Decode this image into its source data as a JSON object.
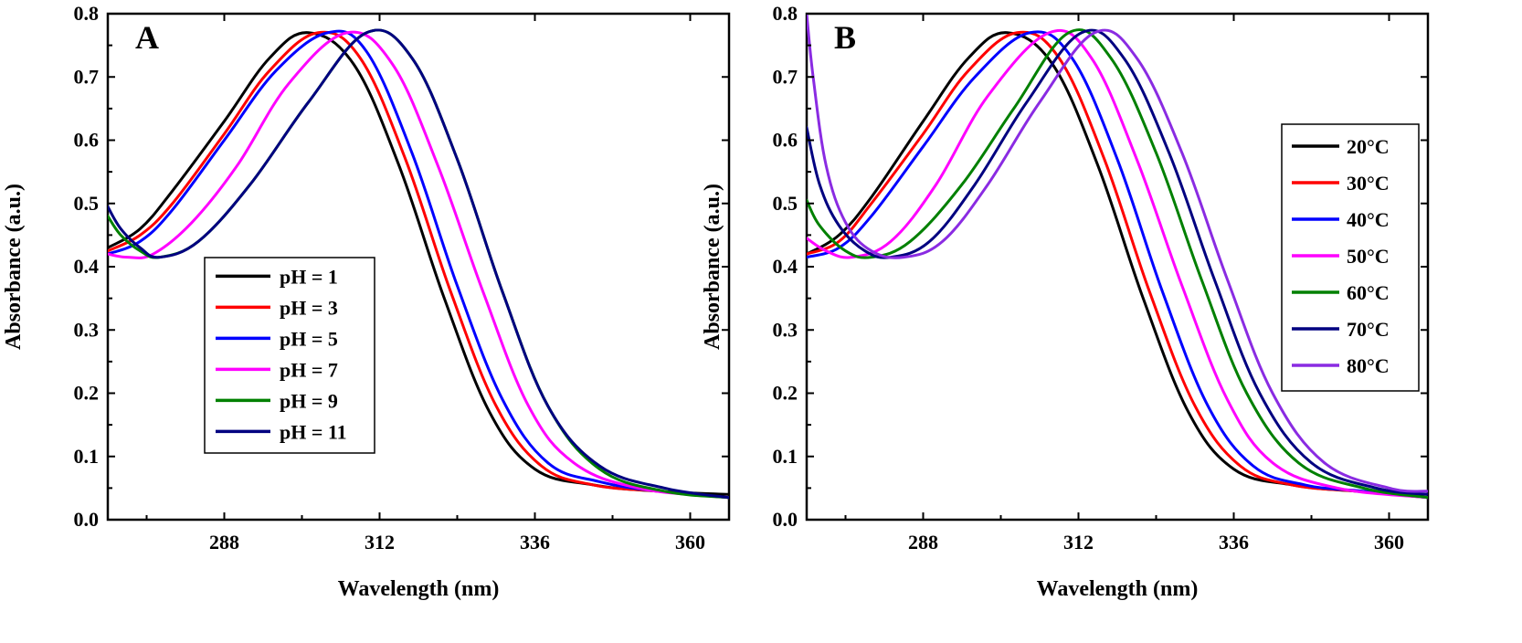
{
  "chart_data": [
    {
      "type": "line",
      "panel_label": "A",
      "xlabel": "Wavelength (nm)",
      "ylabel": "Absorbance (a.u.)",
      "xlim": [
        270,
        366
      ],
      "ylim": [
        0.0,
        0.8
      ],
      "xticks": [
        288,
        312,
        336,
        360
      ],
      "yticks": [
        0.0,
        0.1,
        0.2,
        0.3,
        0.4,
        0.5,
        0.6,
        0.7,
        0.8
      ],
      "xtick_labels": [
        "288",
        "312",
        "336",
        "360"
      ],
      "ytick_labels": [
        "0.0",
        "0.1",
        "0.2",
        "0.3",
        "0.4",
        "0.5",
        "0.6",
        "0.7",
        "0.8"
      ],
      "legend_position": "lower-center",
      "series": [
        {
          "name": "pH = 1",
          "color": "#000000",
          "peak_x": 301.0,
          "values_at": {
            "x": [
              270,
              275,
              280,
              288,
              295,
              301,
              308,
              315,
              322,
              329,
              336,
              345,
              355,
              366
            ],
            "y": [
              0.43,
              0.46,
              0.52,
              0.63,
              0.73,
              0.77,
              0.72,
              0.56,
              0.35,
              0.17,
              0.08,
              0.055,
              0.045,
              0.04
            ]
          }
        },
        {
          "name": "pH = 3",
          "color": "#ff0000",
          "peak_x": 302.5,
          "values_at": {
            "x": [
              270,
              275,
              280,
              288,
              295,
              302.5,
              309,
              316,
              323,
              330,
              337,
              345,
              355,
              366
            ],
            "y": [
              0.425,
              0.45,
              0.5,
              0.61,
              0.71,
              0.77,
              0.73,
              0.57,
              0.36,
              0.18,
              0.085,
              0.055,
              0.045,
              0.035
            ]
          }
        },
        {
          "name": "pH = 5",
          "color": "#0000ff",
          "peak_x": 304.0,
          "values_at": {
            "x": [
              270,
              275,
              280,
              288,
              296,
              304,
              310,
              317,
              324,
              331,
              338,
              346,
              355,
              366
            ],
            "y": [
              0.42,
              0.44,
              0.49,
              0.6,
              0.71,
              0.77,
              0.74,
              0.58,
              0.37,
              0.19,
              0.09,
              0.06,
              0.045,
              0.035
            ]
          }
        },
        {
          "name": "pH = 7",
          "color": "#ff00ff",
          "peak_x": 307.0,
          "values_at": {
            "x": [
              270,
              273,
              277,
              283,
              290,
              298,
              307,
              314,
              321,
              328,
              335,
              342,
              352,
              366
            ],
            "y": [
              0.42,
              0.415,
              0.42,
              0.47,
              0.56,
              0.69,
              0.77,
              0.72,
              0.56,
              0.36,
              0.18,
              0.09,
              0.05,
              0.035
            ]
          }
        },
        {
          "name": "pH = 9",
          "color": "#008000",
          "peak_x": 310.0,
          "values_at": {
            "x": [
              270,
              272,
              275,
              278,
              284,
              292,
              301,
              310,
              317,
              324,
              331,
              338,
              346,
              356,
              366
            ],
            "y": [
              0.48,
              0.45,
              0.425,
              0.415,
              0.44,
              0.53,
              0.66,
              0.77,
              0.73,
              0.57,
              0.36,
              0.18,
              0.08,
              0.045,
              0.035
            ]
          }
        },
        {
          "name": "pH = 11",
          "color": "#000080",
          "peak_x": 310.0,
          "values_at": {
            "x": [
              270,
              272,
              275,
              278,
              284,
              292,
              301,
              310,
              317,
              324,
              331,
              338,
              346,
              356,
              366
            ],
            "y": [
              0.495,
              0.46,
              0.43,
              0.415,
              0.44,
              0.53,
              0.66,
              0.77,
              0.73,
              0.57,
              0.36,
              0.18,
              0.085,
              0.05,
              0.035
            ]
          }
        }
      ]
    },
    {
      "type": "line",
      "panel_label": "B",
      "xlabel": "Wavelength (nm)",
      "ylabel": "Absorbance (a.u.)",
      "xlim": [
        270,
        366
      ],
      "ylim": [
        0.0,
        0.8
      ],
      "xticks": [
        288,
        312,
        336,
        360
      ],
      "yticks": [
        0.0,
        0.1,
        0.2,
        0.3,
        0.4,
        0.5,
        0.6,
        0.7,
        0.8
      ],
      "xtick_labels": [
        "288",
        "312",
        "336",
        "360"
      ],
      "ytick_labels": [
        "0.0",
        "0.1",
        "0.2",
        "0.3",
        "0.4",
        "0.5",
        "0.6",
        "0.7",
        "0.8"
      ],
      "legend_position": "right",
      "series": [
        {
          "name": "20°C",
          "color": "#000000",
          "peak_x": 301.0,
          "values_at": {
            "x": [
              270,
              275,
              280,
              288,
              295,
              301,
              308,
              315,
              322,
              329,
              336,
              345,
              355,
              366
            ],
            "y": [
              0.42,
              0.45,
              0.51,
              0.63,
              0.73,
              0.77,
              0.72,
              0.56,
              0.35,
              0.17,
              0.08,
              0.055,
              0.045,
              0.04
            ]
          }
        },
        {
          "name": "30°C",
          "color": "#ff0000",
          "peak_x": 302.5,
          "values_at": {
            "x": [
              270,
              275,
              280,
              288,
              295,
              302.5,
              309,
              316,
              323,
              330,
              337,
              345,
              355,
              366
            ],
            "y": [
              0.42,
              0.44,
              0.5,
              0.61,
              0.71,
              0.77,
              0.73,
              0.57,
              0.36,
              0.18,
              0.085,
              0.055,
              0.045,
              0.035
            ]
          }
        },
        {
          "name": "40°C",
          "color": "#0000ff",
          "peak_x": 304.5,
          "values_at": {
            "x": [
              270,
              275,
              280,
              288,
              296,
              304.5,
              311,
              318,
              325,
              332,
              339,
              347,
              356,
              366
            ],
            "y": [
              0.415,
              0.43,
              0.48,
              0.59,
              0.7,
              0.77,
              0.73,
              0.57,
              0.36,
              0.18,
              0.085,
              0.055,
              0.045,
              0.035
            ]
          }
        },
        {
          "name": "50°C",
          "color": "#ff00ff",
          "peak_x": 307.5,
          "values_at": {
            "x": [
              270,
              273,
              277,
              283,
              290,
              298,
              307.5,
              314,
              321,
              328,
              335,
              342,
              352,
              366
            ],
            "y": [
              0.445,
              0.425,
              0.415,
              0.44,
              0.53,
              0.67,
              0.77,
              0.73,
              0.57,
              0.37,
              0.19,
              0.09,
              0.05,
              0.035
            ]
          }
        },
        {
          "name": "60°C",
          "color": "#008000",
          "peak_x": 310.5,
          "values_at": {
            "x": [
              270,
              272,
              276,
              280,
              286,
              294,
              302,
              310.5,
              317,
              324,
              331,
              338,
              346,
              356,
              366
            ],
            "y": [
              0.505,
              0.465,
              0.425,
              0.415,
              0.44,
              0.53,
              0.65,
              0.77,
              0.73,
              0.58,
              0.38,
              0.2,
              0.09,
              0.05,
              0.035
            ]
          }
        },
        {
          "name": "70°C",
          "color": "#000080",
          "peak_x": 312.5,
          "values_at": {
            "x": [
              270,
              272,
              275,
              279,
              283,
              289,
              296,
              304,
              312.5,
              319,
              326,
              333,
              340,
              348,
              358,
              366
            ],
            "y": [
              0.62,
              0.53,
              0.465,
              0.425,
              0.415,
              0.44,
              0.53,
              0.66,
              0.77,
              0.73,
              0.58,
              0.38,
              0.2,
              0.09,
              0.05,
              0.04
            ]
          }
        },
        {
          "name": "80°C",
          "color": "#8a2be2",
          "peak_x": 314.5,
          "values_at": {
            "x": [
              270,
              271,
              273,
              276,
              280,
              285,
              291,
              298,
              306,
              314.5,
              321,
              328,
              335,
              342,
              350,
              360,
              366
            ],
            "y": [
              0.8,
              0.7,
              0.56,
              0.47,
              0.425,
              0.415,
              0.44,
              0.53,
              0.66,
              0.77,
              0.73,
              0.58,
              0.38,
              0.2,
              0.09,
              0.05,
              0.045
            ]
          }
        }
      ]
    }
  ]
}
